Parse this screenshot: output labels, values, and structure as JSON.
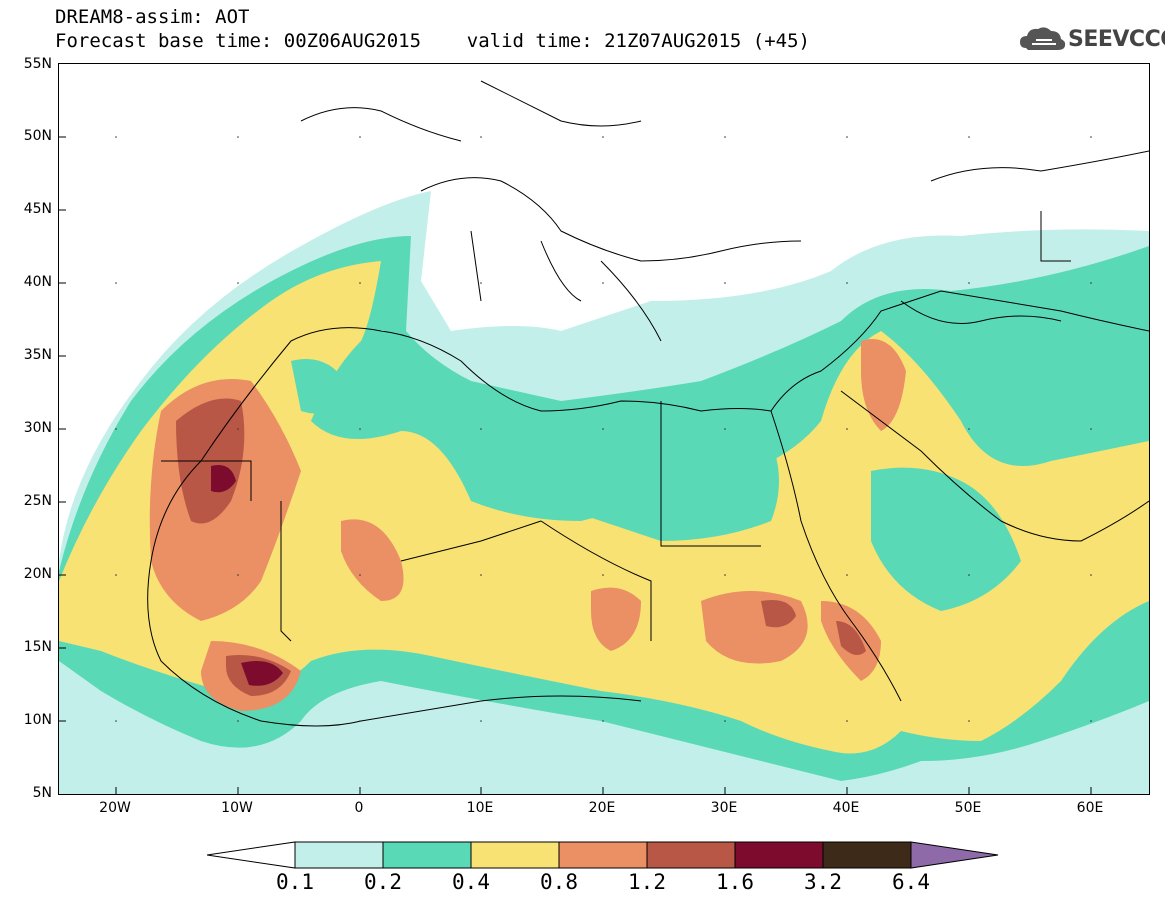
{
  "header": {
    "line1": "DREAM8-assim: AOT",
    "line2": "Forecast base time: 00Z06AUG2015    valid time: 21Z07AUG2015 (+45)"
  },
  "logo": {
    "text": "SEEVCCC",
    "icon": "cloud-icon"
  },
  "axes": {
    "lat_labels": [
      "55N",
      "50N",
      "45N",
      "40N",
      "35N",
      "30N",
      "25N",
      "20N",
      "15N",
      "10N",
      "5N"
    ],
    "lon_labels": [
      "20W",
      "10W",
      "0",
      "10E",
      "20E",
      "30E",
      "40E",
      "50E",
      "60E"
    ]
  },
  "colorbar": {
    "labels": [
      "0.1",
      "0.2",
      "0.4",
      "0.8",
      "1.2",
      "1.6",
      "3.2",
      "6.4"
    ],
    "colors": [
      "#c2efea",
      "#5ad9b6",
      "#f7e273",
      "#eb8f64",
      "#b85745",
      "#7d0b2e",
      "#3d2a18",
      "#8e6aa8"
    ]
  },
  "palette": {
    "land_border": "#000000",
    "background": "#ffffff"
  }
}
